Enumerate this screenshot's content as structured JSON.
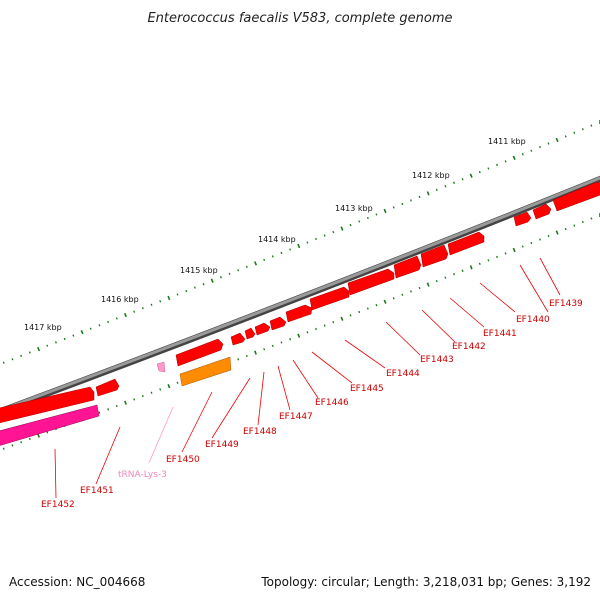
{
  "title": "Enterococcus faecalis V583, complete genome",
  "footer": {
    "accession": "Accession: NC_004668",
    "topology": "Topology: circular; Length: 3,218,031 bp; Genes: 3,192"
  },
  "kbp_labels": [
    "1411 kbp",
    "1412 kbp",
    "1413 kbp",
    "1414 kbp",
    "1415 kbp",
    "1416 kbp",
    "1417 kbp"
  ],
  "gene_labels": [
    "EF1439",
    "EF1440",
    "EF1441",
    "EF1442",
    "EF1443",
    "EF1444",
    "EF1445",
    "EF1446",
    "EF1447",
    "EF1448",
    "EF1449",
    "EF1450",
    "EF1451",
    "EF1452"
  ],
  "trna_label": "tRNA-Lys-3",
  "colors": {
    "backbone": "#808080",
    "gene_red": "#ff0000",
    "gene_orange": "#ff8c00",
    "gene_pink": "#ff1493",
    "trna": "#ff99cc",
    "tick_green": "#1a7a1a"
  }
}
